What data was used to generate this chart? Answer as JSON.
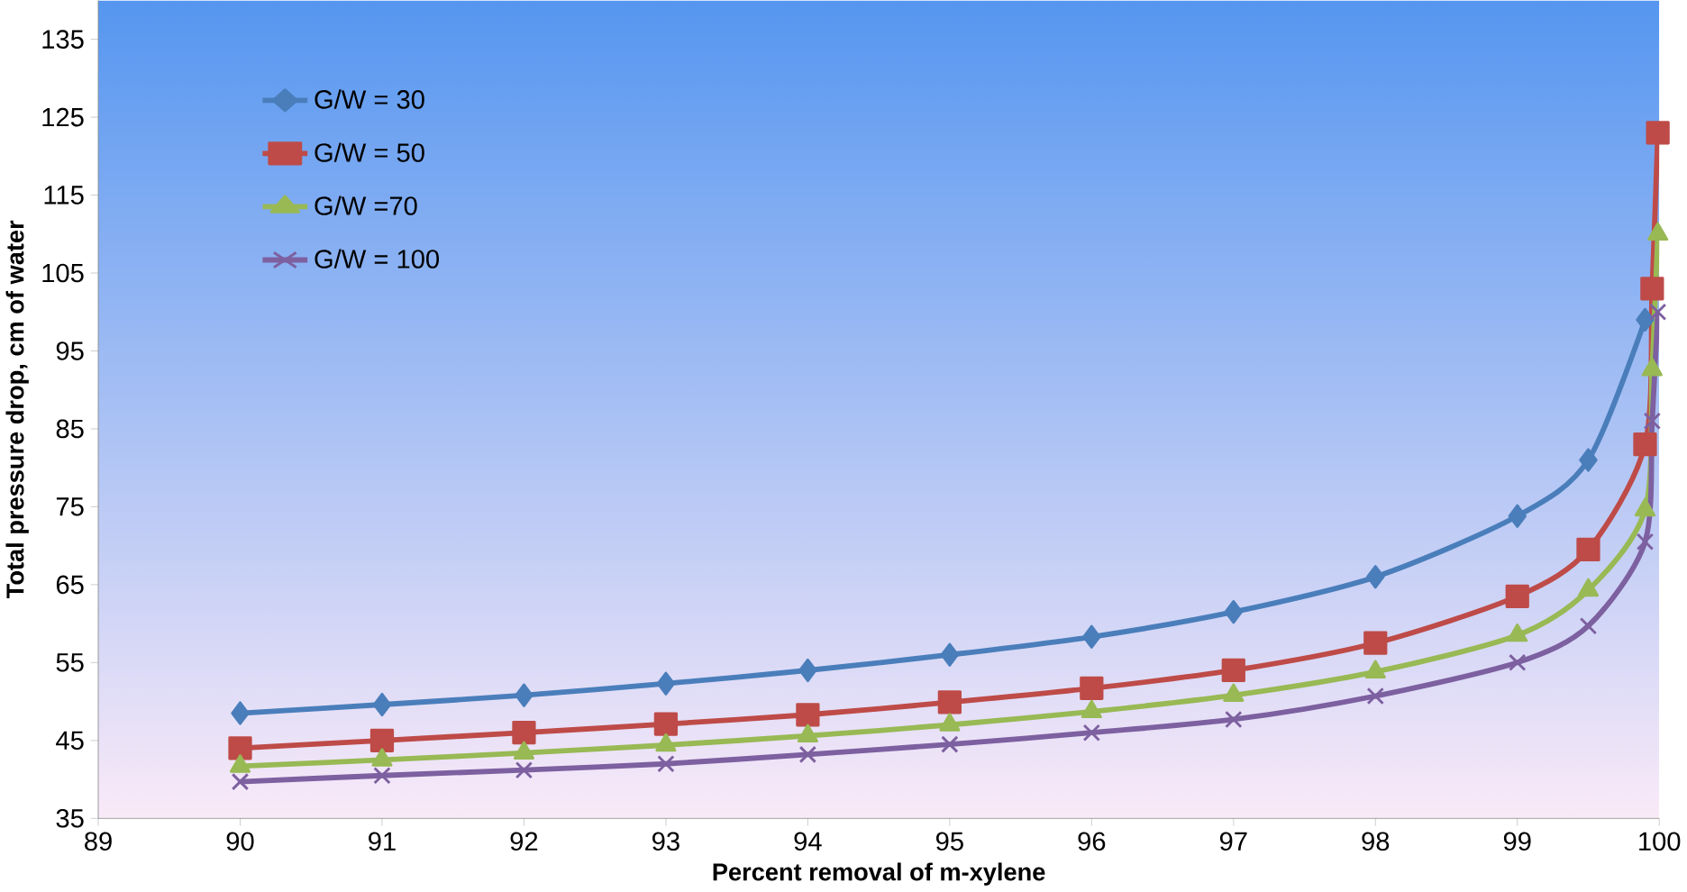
{
  "chart_data": {
    "type": "line",
    "xlabel": "Percent removal of m-xylene",
    "ylabel": "Total pressure drop, cm of water",
    "x": [
      90,
      91,
      92,
      93,
      94,
      95,
      96,
      97,
      98,
      99,
      99.5,
      99.9,
      99.95,
      99.99
    ],
    "xlim": [
      89,
      100
    ],
    "xticks": [
      89,
      90,
      91,
      92,
      93,
      94,
      95,
      96,
      97,
      98,
      99,
      100
    ],
    "ylim": [
      35,
      140
    ],
    "yticks": [
      35,
      45,
      55,
      65,
      75,
      85,
      95,
      105,
      115,
      125,
      135
    ],
    "legend": "top left",
    "grid": false,
    "series": [
      {
        "name": "G/W = 30",
        "color": "#4a7ebb",
        "marker": "diamond",
        "values": [
          48.5,
          49.6,
          50.8,
          52.3,
          54,
          56,
          58.3,
          61.5,
          66,
          73.8,
          81,
          99,
          null,
          null
        ]
      },
      {
        "name": "G/W = 50",
        "color": "#be4b48",
        "marker": "square",
        "values": [
          44,
          45,
          46,
          47.1,
          48.3,
          49.9,
          51.7,
          54,
          57.5,
          63.5,
          69.5,
          83,
          103,
          123
        ]
      },
      {
        "name": "G/W =70",
        "color": "#98b954",
        "marker": "triangle",
        "values": [
          41.7,
          42.5,
          43.4,
          44.4,
          45.6,
          47,
          48.7,
          50.8,
          53.8,
          58.5,
          64.3,
          74.6,
          92.6,
          110
        ]
      },
      {
        "name": "G/W = 100",
        "color": "#7d60a0",
        "marker": "cross",
        "values": [
          39.7,
          40.5,
          41.2,
          42,
          43.2,
          44.5,
          46,
          47.7,
          50.7,
          55,
          59.7,
          70.5,
          86,
          100
        ]
      }
    ]
  }
}
